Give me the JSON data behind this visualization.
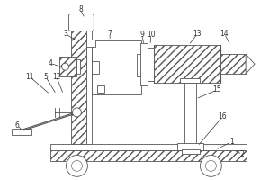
{
  "bg_color": "white",
  "line_color": "#555555",
  "label_color": "#333333",
  "figsize": [
    3.0,
    2.0
  ],
  "dpi": 100
}
